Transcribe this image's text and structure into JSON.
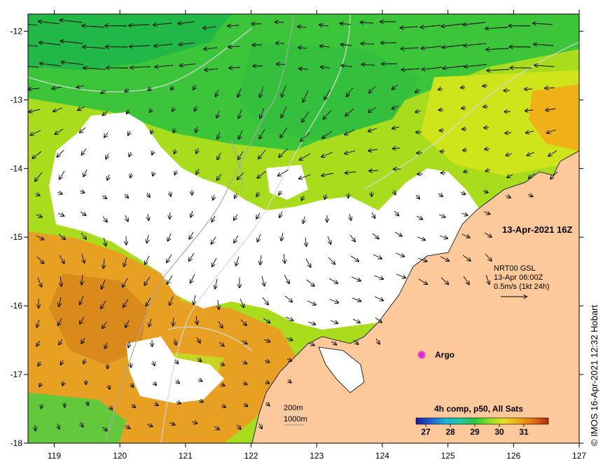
{
  "map": {
    "lon_range": [
      118.6,
      127.0
    ],
    "lat_range": [
      -18.0,
      -11.75
    ],
    "lon_ticks": [
      119,
      120,
      121,
      122,
      123,
      124,
      125,
      126,
      127
    ],
    "lat_ticks": [
      -12,
      -13,
      -14,
      -15,
      -16,
      -17,
      -18
    ],
    "lon_labels": [
      "119",
      "120",
      "121",
      "122",
      "123",
      "124",
      "125",
      "126",
      "127"
    ],
    "lat_labels": [
      "-12",
      "-13",
      "-14",
      "-15",
      "-16",
      "-17",
      "-18"
    ]
  },
  "annotations": {
    "date_stamp": "13-Apr-2021 16Z",
    "current_source": "NRT00 GSL",
    "current_time": "13-Apr 06:00Z",
    "current_scale": "0.5m/s (1kt 24h)",
    "argo_label": "Argo",
    "isobath_200": "200m",
    "isobath_1000": "1000m",
    "colorbar_title": "4h comp, p50, All Sats",
    "colorbar_ticks": [
      "27",
      "28",
      "29",
      "30",
      "31"
    ],
    "side_credit": "© IMOS 16-Apr-2021 12:32 Hobart"
  },
  "colorbar": {
    "min": 26.6,
    "max": 32.0,
    "tick_values": [
      27,
      28,
      29,
      30,
      31
    ],
    "stops": [
      "#1a1a9e",
      "#1f5fd0",
      "#18b4d8",
      "#20c8a0",
      "#28c83c",
      "#8ee020",
      "#e8e020",
      "#f0a818",
      "#e07010",
      "#b02a0a"
    ]
  },
  "colors": {
    "land": "#fdc99a",
    "cloud": "#ffffff",
    "sst_cool": "#30c030",
    "sst_mid": "#b8e020",
    "sst_warm": "#e8a020",
    "isobath_200": "#d8d8d8",
    "isobath_1000": "#a8a8a8",
    "argo": "#e020e0"
  }
}
